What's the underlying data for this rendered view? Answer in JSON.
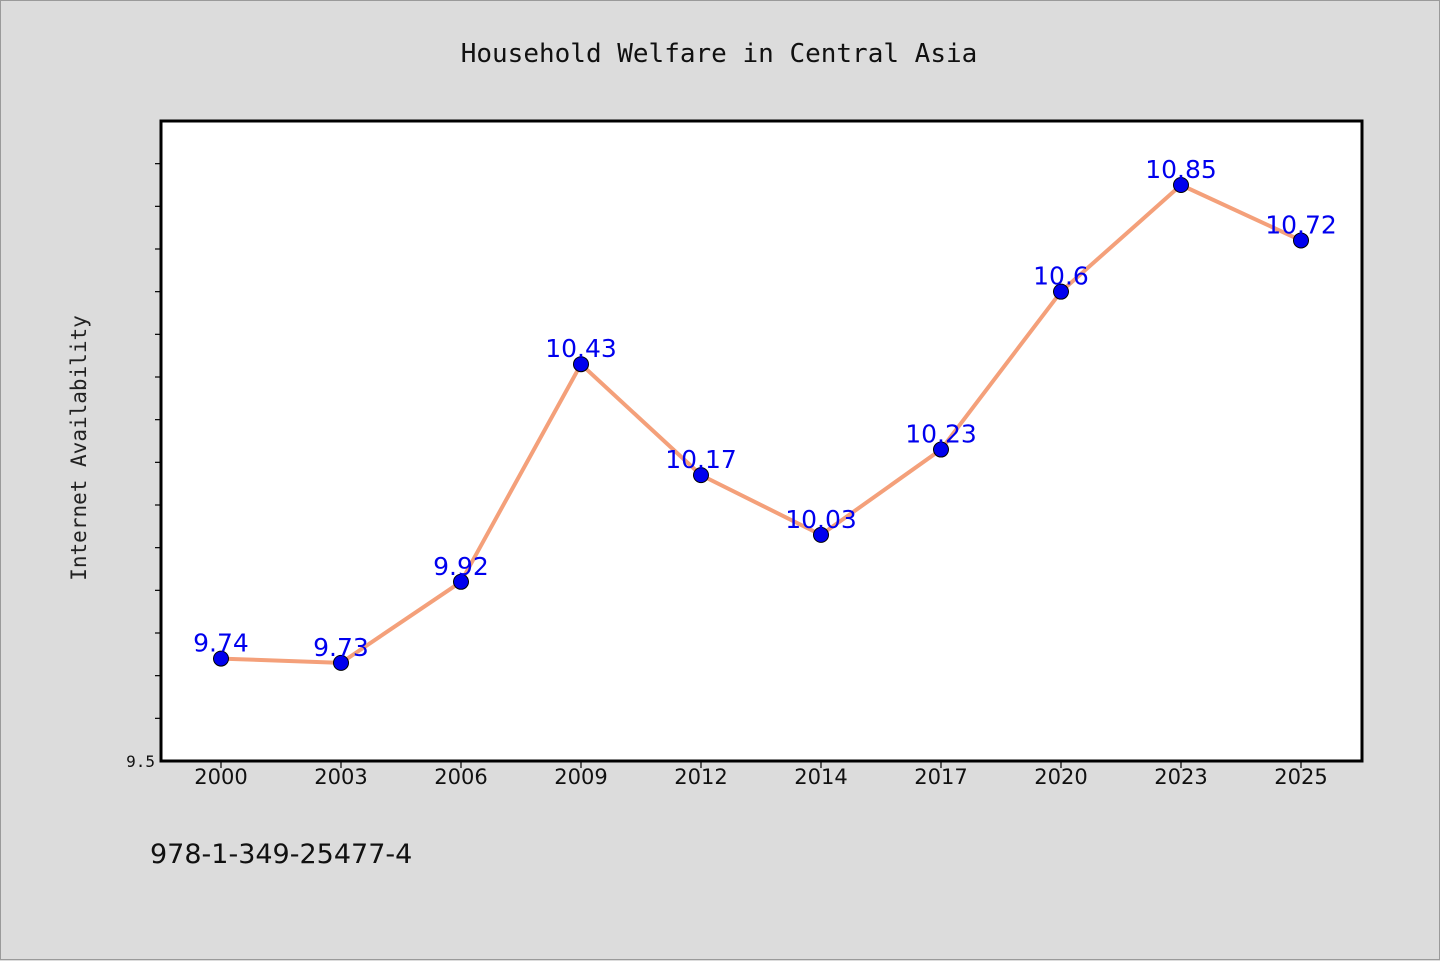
{
  "chart_data": {
    "type": "line",
    "title": "Household Welfare in Central Asia",
    "xlabel": "",
    "ylabel": "Internet Availability",
    "categories": [
      "2000",
      "2003",
      "2006",
      "2009",
      "2012",
      "2014",
      "2017",
      "2020",
      "2023",
      "2025"
    ],
    "series": [
      {
        "values": [
          9.74,
          9.73,
          9.92,
          10.43,
          10.17,
          10.03,
          10.23,
          10.6,
          10.85,
          10.72
        ],
        "labels": [
          "9.74",
          "9.73",
          "9.92",
          "10.43",
          "10.17",
          "10.03",
          "10.23",
          "10.6",
          "10.85",
          "10.72"
        ],
        "line_color": "#f4a07a",
        "marker_color": "#0000ee"
      }
    ],
    "ylim": [
      9.5,
      11.0
    ],
    "yticks_labeled": [
      "9.5"
    ],
    "ytick_step": 0.1,
    "grid": false,
    "legend": false
  },
  "footer": {
    "isbn": "978-1-349-25477-4"
  }
}
